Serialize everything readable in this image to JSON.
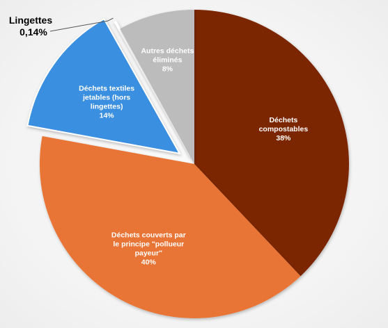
{
  "chart_data": {
    "type": "pie",
    "slices": [
      {
        "lines": [
          "Déchets",
          "compostables",
          "38%"
        ],
        "value": 38,
        "color": "#7b2506"
      },
      {
        "lines": [
          "Déchets couverts par",
          "le principe \"pollueur",
          "payeur\"",
          "40%"
        ],
        "value": 40,
        "color": "#e87536"
      },
      {
        "lines": [
          "Déchets textiles",
          "jetables (hors",
          "lingettes)",
          "14%"
        ],
        "value": 14,
        "color": "#3b8fe0",
        "exploded": true
      },
      {
        "lines": [
          "Lingettes",
          "0,14%"
        ],
        "value": 0.14,
        "color": "#d32f2f",
        "exploded": true,
        "outside_label": true
      },
      {
        "lines": [
          "Autres déchets",
          "éliminés",
          "8%"
        ],
        "value": 8,
        "color": "#bcbcbc"
      }
    ]
  }
}
